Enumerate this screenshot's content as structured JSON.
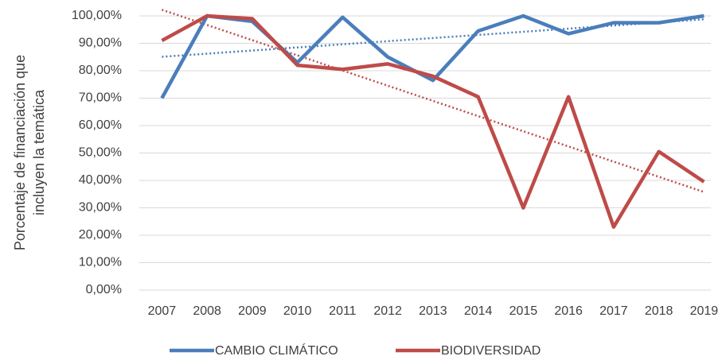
{
  "chart_data": {
    "type": "line",
    "y_label_lines": [
      "Porcentaje de financiación que",
      "incluyen la temática"
    ],
    "categories": [
      "2007",
      "2008",
      "2009",
      "2010",
      "2011",
      "2012",
      "2013",
      "2014",
      "2015",
      "2016",
      "2017",
      "2018",
      "2019"
    ],
    "series": [
      {
        "name": "CAMBIO CLIMÁTICO",
        "color": "#4a7ebb",
        "values": [
          70,
          100,
          98,
          83,
          99.5,
          85,
          76.5,
          94.5,
          100,
          93.5,
          97.5,
          97.5,
          100
        ]
      },
      {
        "name": "BIODIVERSIDAD",
        "color": "#be4b48",
        "values": [
          91,
          100,
          99,
          82,
          80.5,
          82.5,
          78,
          70.5,
          30,
          70.5,
          23,
          50.5,
          39.5
        ]
      }
    ],
    "ylim": [
      0,
      100
    ],
    "yticks": [
      {
        "value": 0,
        "label": "0,00%"
      },
      {
        "value": 10,
        "label": "10,00%"
      },
      {
        "value": 20,
        "label": "20,00%"
      },
      {
        "value": 30,
        "label": "30,00%"
      },
      {
        "value": 40,
        "label": "40,00%"
      },
      {
        "value": 50,
        "label": "50,00%"
      },
      {
        "value": 60,
        "label": "60,00%"
      },
      {
        "value": 70,
        "label": "70,00%"
      },
      {
        "value": 80,
        "label": "80,00%"
      },
      {
        "value": 90,
        "label": "90,00%"
      },
      {
        "value": 100,
        "label": "100,00%"
      }
    ],
    "grid": true,
    "trendline": "linear",
    "legend": "bottom"
  }
}
